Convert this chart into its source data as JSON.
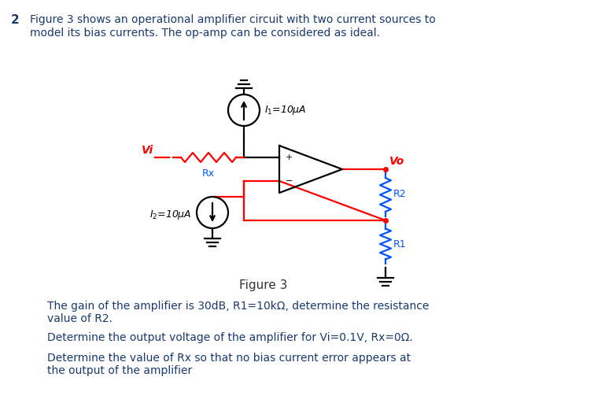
{
  "background_color": "#ffffff",
  "title_number": "2",
  "intro_text_line1": "Figure 3 shows an operational amplifier circuit with two current sources to",
  "intro_text_line2": "model its bias currents. The op-amp can be considered as ideal.",
  "figure_label": "Figure 3",
  "question1": "The gain of the amplifier is 30dB, R1=10kΩ, determine the resistance\nvalue of R2.",
  "question2": "Determine the output voltage of the amplifier for Vi=0.1V, Rx=0Ω.",
  "question3": "Determine the value of Rx so that no bias current error appears at\nthe output of the amplifier",
  "I1_label": "$I_1$=10μA",
  "I2_label": "$I_2$=10μA",
  "Vi_label": "Vi",
  "Rx_label": "Rx",
  "Vo_label": "Vo",
  "R1_label": "R1",
  "R2_label": "R2",
  "red_color": "#FF0000",
  "blue_color": "#0055FF",
  "black_color": "#000000",
  "text_color": "#1a3a6e",
  "fig3_text_color": "#333333"
}
